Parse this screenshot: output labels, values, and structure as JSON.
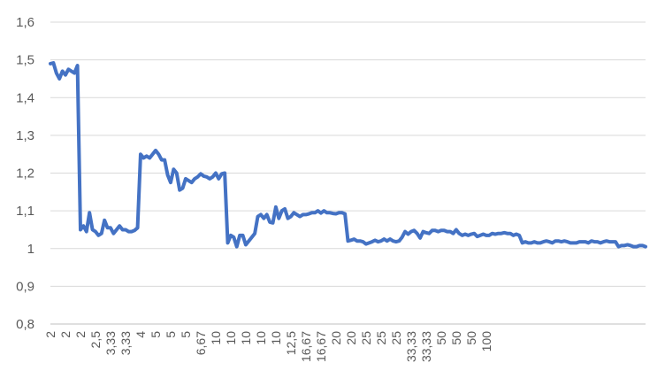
{
  "chart_data": {
    "type": "line",
    "title": "",
    "xlabel": "",
    "ylabel": "",
    "ylim": [
      0.8,
      1.6
    ],
    "yticks": [
      "0,8",
      "0,9",
      "1",
      "1,1",
      "1,2",
      "1,3",
      "1,4",
      "1,5",
      "1,6"
    ],
    "grid": true,
    "legend": "none",
    "series_color": "#4472c4",
    "x_tick_labels": [
      "2",
      "2",
      "2",
      "2,5",
      "3,33",
      "3,33",
      "4",
      "5",
      "5",
      "5",
      "6,67",
      "10",
      "10",
      "10",
      "10",
      "10",
      "12,5",
      "16,67",
      "16,67",
      "20",
      "20",
      "25",
      "25",
      "25",
      "33,33",
      "33,33",
      "50",
      "50",
      "50",
      "100"
    ],
    "x_tick_step": 5,
    "series": [
      {
        "values": [
          1.49,
          1.492,
          1.465,
          1.45,
          1.47,
          1.46,
          1.475,
          1.47,
          1.465,
          1.485,
          1.05,
          1.06,
          1.045,
          1.095,
          1.05,
          1.045,
          1.035,
          1.04,
          1.075,
          1.055,
          1.055,
          1.04,
          1.05,
          1.06,
          1.05,
          1.05,
          1.045,
          1.045,
          1.048,
          1.055,
          1.25,
          1.24,
          1.245,
          1.24,
          1.25,
          1.26,
          1.25,
          1.235,
          1.235,
          1.195,
          1.175,
          1.21,
          1.2,
          1.155,
          1.16,
          1.185,
          1.18,
          1.175,
          1.185,
          1.19,
          1.198,
          1.192,
          1.19,
          1.185,
          1.19,
          1.2,
          1.185,
          1.198,
          1.2,
          1.015,
          1.035,
          1.03,
          1.005,
          1.035,
          1.035,
          1.01,
          1.02,
          1.03,
          1.04,
          1.085,
          1.09,
          1.08,
          1.09,
          1.07,
          1.068,
          1.11,
          1.08,
          1.1,
          1.105,
          1.08,
          1.085,
          1.095,
          1.09,
          1.085,
          1.09,
          1.09,
          1.092,
          1.095,
          1.095,
          1.1,
          1.094,
          1.1,
          1.095,
          1.095,
          1.093,
          1.092,
          1.095,
          1.095,
          1.092,
          1.02,
          1.022,
          1.025,
          1.02,
          1.02,
          1.018,
          1.012,
          1.015,
          1.018,
          1.022,
          1.018,
          1.02,
          1.025,
          1.02,
          1.025,
          1.02,
          1.018,
          1.02,
          1.03,
          1.045,
          1.038,
          1.045,
          1.048,
          1.04,
          1.028,
          1.045,
          1.042,
          1.04,
          1.048,
          1.048,
          1.045,
          1.048,
          1.048,
          1.045,
          1.045,
          1.04,
          1.05,
          1.04,
          1.035,
          1.038,
          1.035,
          1.038,
          1.04,
          1.032,
          1.035,
          1.038,
          1.035,
          1.035,
          1.04,
          1.038,
          1.04,
          1.04,
          1.042,
          1.04,
          1.04,
          1.035,
          1.038,
          1.035,
          1.015,
          1.018,
          1.015,
          1.015,
          1.018,
          1.015,
          1.015,
          1.018,
          1.02,
          1.018,
          1.015,
          1.02,
          1.02,
          1.018,
          1.02,
          1.018,
          1.015,
          1.015,
          1.015,
          1.018,
          1.018,
          1.018,
          1.015,
          1.02,
          1.018,
          1.018,
          1.015,
          1.018,
          1.02,
          1.018,
          1.018,
          1.018,
          1.005,
          1.008,
          1.008,
          1.01,
          1.008,
          1.005,
          1.005,
          1.008,
          1.008,
          1.005
        ]
      }
    ]
  }
}
